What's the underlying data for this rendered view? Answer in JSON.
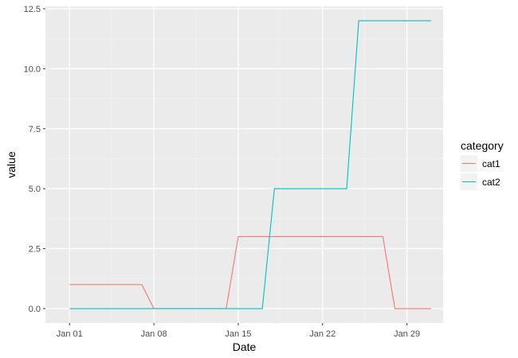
{
  "chart_data": {
    "type": "line",
    "title": "",
    "xlabel": "Date",
    "ylabel": "value",
    "x_type": "date",
    "x_tick_labels": [
      "Jan 01",
      "Jan 08",
      "Jan 15",
      "Jan 22",
      "Jan 29"
    ],
    "x_ticks": [
      "2018-01-01",
      "2018-01-08",
      "2018-01-15",
      "2018-01-22",
      "2018-01-29"
    ],
    "y_tick_labels": [
      "0.0",
      "2.5",
      "5.0",
      "7.5",
      "10.0",
      "12.5"
    ],
    "y_ticks": [
      0,
      2.5,
      5,
      7.5,
      10,
      12.5
    ],
    "xlim": [
      "2017-12-30",
      "2018-02-01"
    ],
    "ylim": [
      -0.6,
      12.6
    ],
    "grid": true,
    "legend": {
      "title": "category",
      "position": "right"
    },
    "series": [
      {
        "name": "cat1",
        "color": "#f8766d",
        "points": [
          [
            "2018-01-01",
            1
          ],
          [
            "2018-01-07",
            1
          ],
          [
            "2018-01-08",
            0
          ],
          [
            "2018-01-14",
            0
          ],
          [
            "2018-01-15",
            3
          ],
          [
            "2018-01-27",
            3
          ],
          [
            "2018-01-28",
            0
          ],
          [
            "2018-01-31",
            0
          ]
        ]
      },
      {
        "name": "cat2",
        "color": "#00bfc4",
        "points": [
          [
            "2018-01-01",
            0
          ],
          [
            "2018-01-17",
            0
          ],
          [
            "2018-01-18",
            5
          ],
          [
            "2018-01-24",
            5
          ],
          [
            "2018-01-25",
            12
          ],
          [
            "2018-01-31",
            12
          ]
        ]
      }
    ]
  }
}
